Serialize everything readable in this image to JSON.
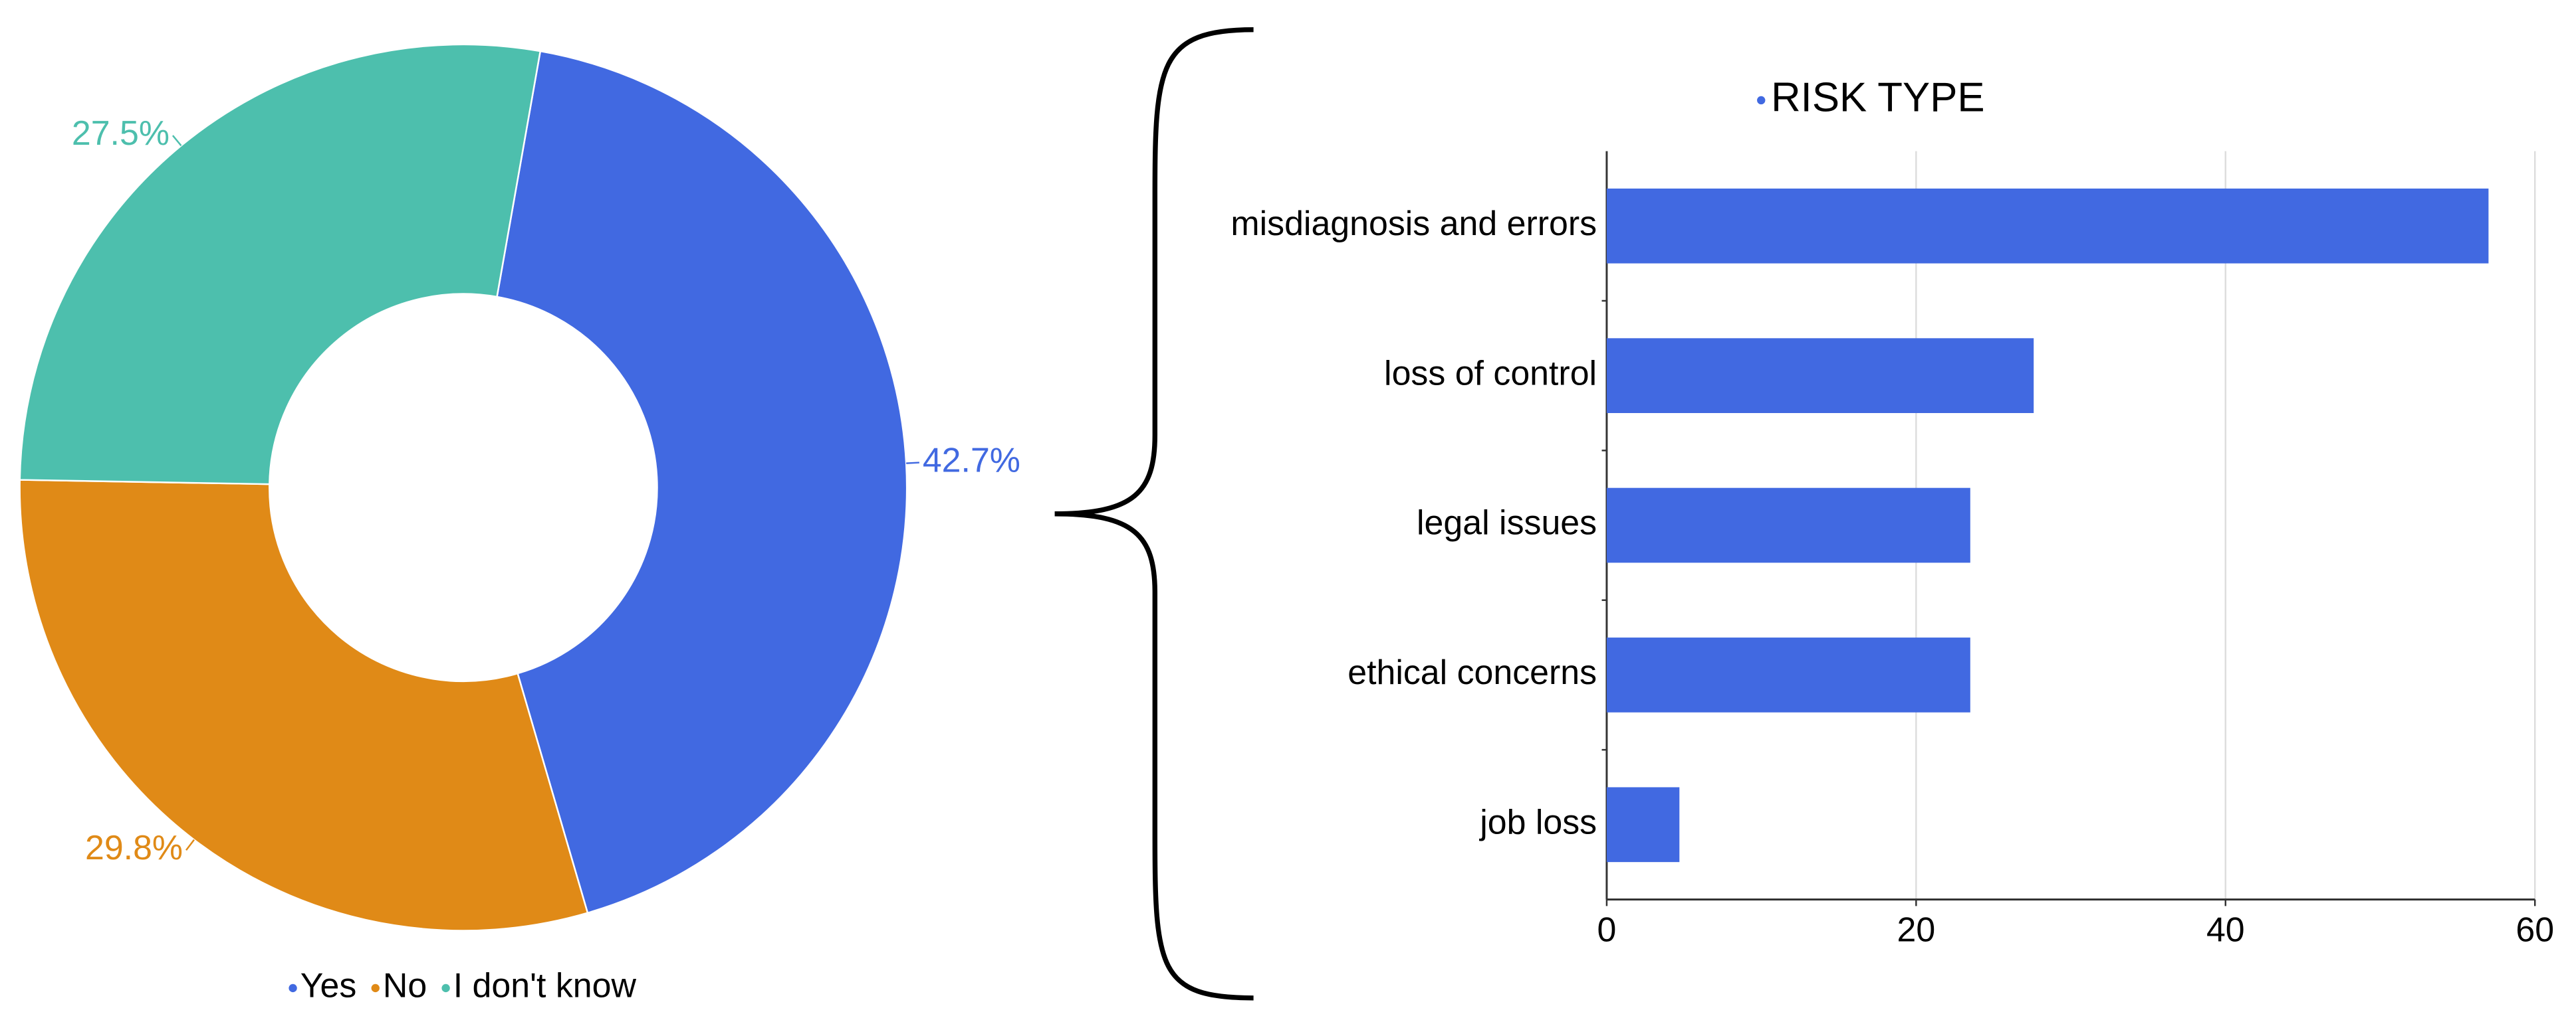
{
  "chart_data": [
    {
      "type": "pie",
      "donut": true,
      "categories": [
        "Yes",
        "No",
        "I don't know"
      ],
      "values": [
        42.7,
        29.8,
        27.5
      ],
      "value_labels": [
        "42.7%",
        "29.8%",
        "27.5%"
      ],
      "colors": [
        "#4169e1",
        "#e08a17",
        "#4dbfad"
      ],
      "legend": "bottom"
    },
    {
      "type": "bar",
      "orientation": "horizontal",
      "categories": [
        "misdiagnosis and errors",
        "loss of control",
        "legal issues",
        "ethical concerns",
        "job loss"
      ],
      "series": [
        {
          "name": "RISK TYPE",
          "color": "#4169e1",
          "values": [
            57,
            27.6,
            23.5,
            23.5,
            4.7
          ]
        }
      ],
      "xlim": [
        0,
        60
      ],
      "xticks": [
        0,
        20,
        40,
        60
      ],
      "grid": true,
      "legend": "top"
    }
  ]
}
